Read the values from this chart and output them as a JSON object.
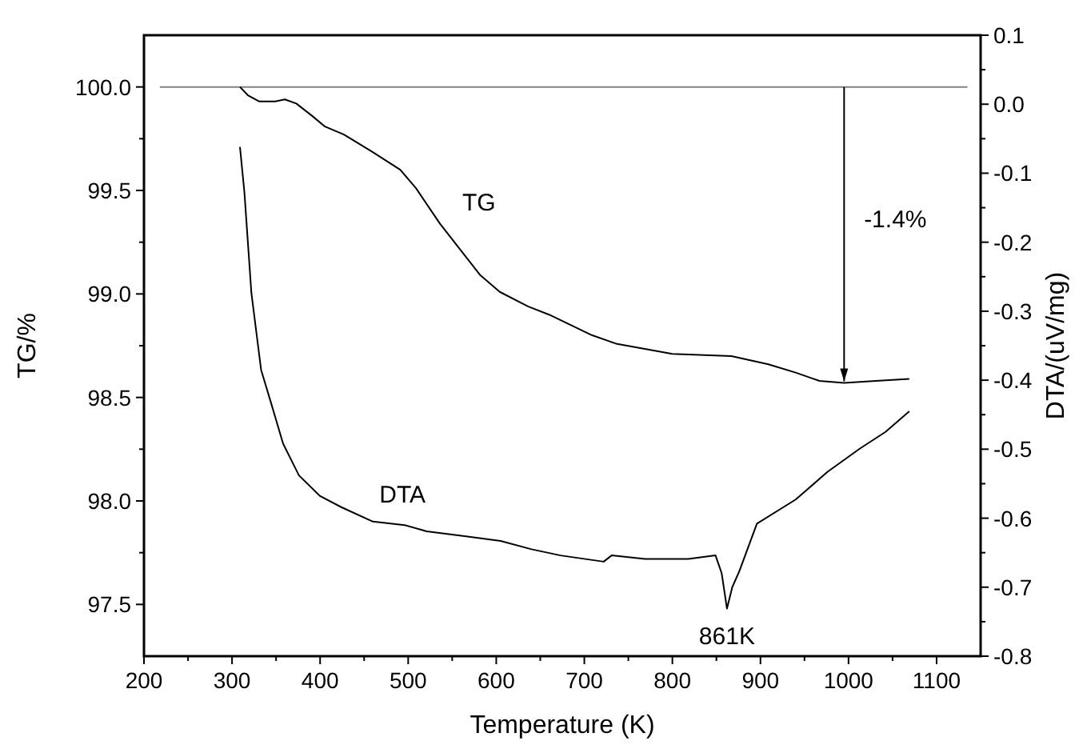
{
  "chart_data": {
    "type": "line",
    "xlabel": "Temperature (K)",
    "ylabel": "TG/%",
    "y2label": "DTA/(uV/mg)",
    "xlim": [
      200,
      1150
    ],
    "xticks": [
      200,
      {
        "value": 250,
        "label": null
      },
      300,
      {
        "value": 350,
        "label": null
      },
      400,
      {
        "value": 450,
        "label": null
      },
      500,
      {
        "value": 550,
        "label": null
      },
      600,
      {
        "value": 650,
        "label": null
      },
      700,
      {
        "value": 750,
        "label": null
      },
      800,
      {
        "value": 850,
        "label": null
      },
      900,
      {
        "value": 950,
        "label": null
      },
      1000,
      {
        "value": 1050,
        "label": null
      },
      1100
    ],
    "ylim": [
      97.25,
      100.25
    ],
    "yticks": [
      {
        "value": 97.5,
        "label": "97.5"
      },
      {
        "value": 97.75,
        "label": null
      },
      {
        "value": 98,
        "label": "98.0"
      },
      {
        "value": 98.25,
        "label": null
      },
      {
        "value": 98.5,
        "label": "98.5"
      },
      {
        "value": 98.75,
        "label": null
      },
      {
        "value": 99,
        "label": "99.0"
      },
      {
        "value": 99.25,
        "label": null
      },
      {
        "value": 99.5,
        "label": "99.5"
      },
      {
        "value": 99.75,
        "label": null
      },
      {
        "value": 100,
        "label": "100.0"
      }
    ],
    "y2lim": [
      -0.8,
      0.1
    ],
    "y2ticks": [
      -0.8,
      {
        "value": -0.75,
        "label": null
      },
      -0.7,
      {
        "value": -0.65,
        "label": null
      },
      -0.6,
      {
        "value": -0.55,
        "label": null
      },
      -0.5,
      {
        "value": -0.45,
        "label": null
      },
      -0.4,
      {
        "value": -0.35,
        "label": null
      },
      -0.3,
      {
        "value": -0.25,
        "label": null
      },
      -0.2,
      {
        "value": -0.15,
        "label": null
      },
      -0.1,
      {
        "value": -0.05,
        "label": null
      },
      {
        "value": 0,
        "label": "0.0"
      },
      {
        "value": 0.05,
        "label": null
      },
      0.1
    ],
    "grid": false,
    "series": [
      {
        "color": "#808080",
        "x": [
          218,
          1135
        ],
        "values": [
          100.0,
          100.0
        ]
      },
      {
        "name": "TG",
        "color": "#000000",
        "x": [
          309,
          318,
          331,
          349,
          360,
          373,
          391,
          405,
          427,
          458,
          491,
          509,
          536,
          558,
          582,
          604,
          636,
          660,
          709,
          736,
          800,
          867,
          909,
          940,
          967,
          995,
          1031,
          1069
        ],
        "values": [
          100.0,
          99.96,
          99.93,
          99.93,
          99.94,
          99.92,
          99.86,
          99.81,
          99.77,
          99.69,
          99.6,
          99.51,
          99.34,
          99.22,
          99.09,
          99.01,
          98.94,
          98.9,
          98.8,
          98.76,
          98.71,
          98.7,
          98.66,
          98.62,
          98.58,
          98.57,
          98.58,
          98.59
        ]
      },
      {
        "name": "DTA",
        "axis": "y2",
        "color": "#000000",
        "x": [
          309,
          314,
          322,
          333,
          345,
          358,
          376,
          400,
          424,
          460,
          496,
          521,
          564,
          605,
          640,
          673,
          722,
          731,
          769,
          818,
          849,
          856,
          862,
          868,
          876,
          896,
          940,
          976,
          1013,
          1042,
          1069
        ],
        "values": [
          -0.062,
          -0.127,
          -0.274,
          -0.385,
          -0.436,
          -0.492,
          -0.538,
          -0.568,
          -0.584,
          -0.605,
          -0.61,
          -0.619,
          -0.626,
          -0.633,
          -0.645,
          -0.654,
          -0.663,
          -0.654,
          -0.659,
          -0.659,
          -0.654,
          -0.68,
          -0.731,
          -0.7,
          -0.677,
          -0.608,
          -0.573,
          -0.533,
          -0.499,
          -0.475,
          -0.445
        ]
      }
    ],
    "annotations": [
      "-1.4%",
      "861K"
    ]
  }
}
